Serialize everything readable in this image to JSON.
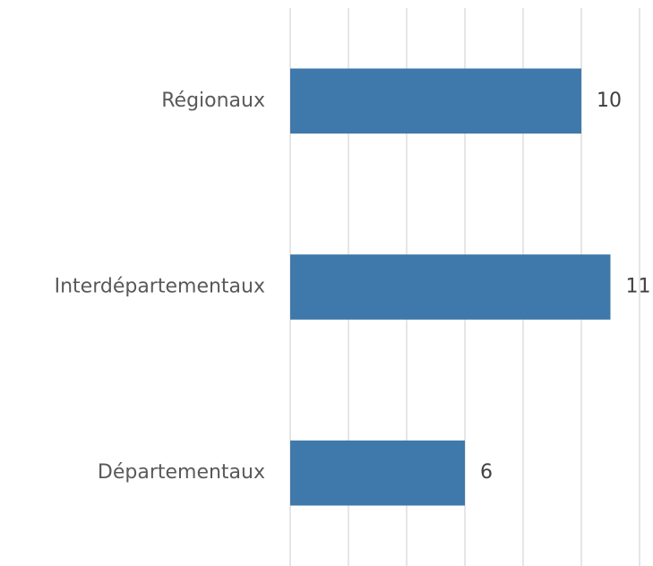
{
  "chart_data": {
    "type": "bar",
    "orientation": "horizontal",
    "categories": [
      "Régionaux",
      "Interdépartementaux",
      "Départementaux"
    ],
    "values": [
      10,
      11,
      6
    ],
    "color": "#3f78aa",
    "xlim": [
      0,
      12
    ],
    "xticks": [
      0,
      2,
      4,
      6,
      8,
      10,
      12
    ],
    "grid": true
  }
}
